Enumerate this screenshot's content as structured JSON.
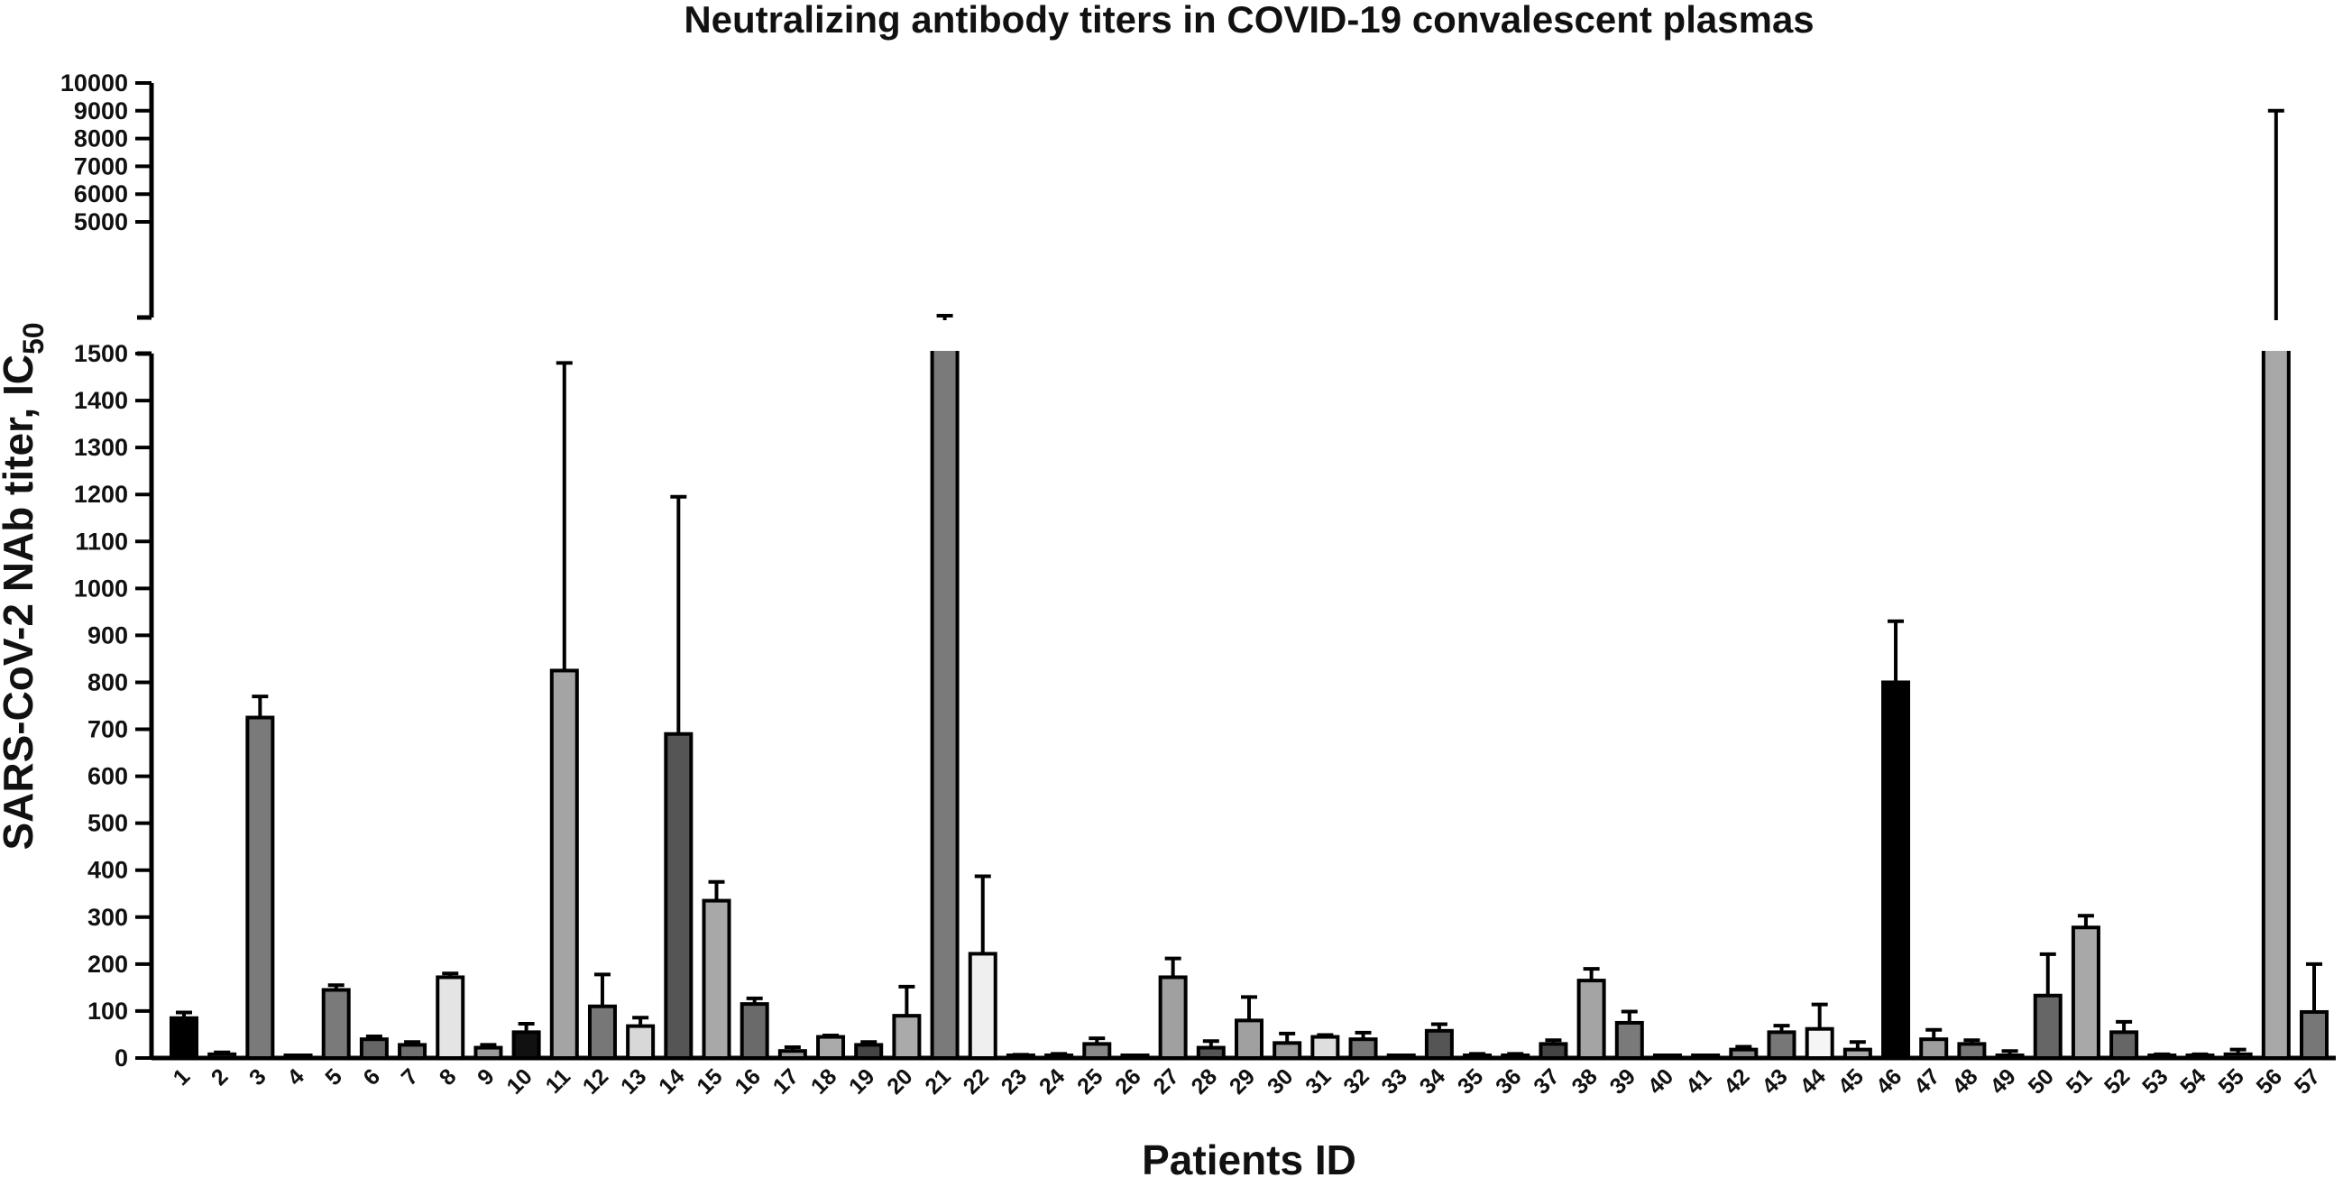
{
  "chart_data": {
    "type": "bar",
    "title": "Neutralizing antibody titers in COVID-19 convalescent plasmas",
    "xlabel": "Patients ID",
    "ylabel_main": "SARS-CoV-2 NAb titer, IC",
    "ylabel_sub": "50",
    "y_axis_break": true,
    "ylim_lower": [
      0,
      1500
    ],
    "ylim_upper": [
      5000,
      10000
    ],
    "yticks_lower": [
      "0",
      "100",
      "200",
      "300",
      "400",
      "500",
      "600",
      "700",
      "800",
      "900",
      "1000",
      "1100",
      "1200",
      "1300",
      "1400",
      "1500"
    ],
    "yticks_upper": [
      "5000",
      "6000",
      "7000",
      "8000",
      "9000",
      "10000"
    ],
    "categories": [
      "1",
      "2",
      "3",
      "4",
      "5",
      "6",
      "7",
      "8",
      "9",
      "10",
      "11",
      "12",
      "13",
      "14",
      "15",
      "16",
      "17",
      "18",
      "19",
      "20",
      "21",
      "22",
      "23",
      "24",
      "25",
      "26",
      "27",
      "28",
      "29",
      "30",
      "31",
      "32",
      "33",
      "34",
      "35",
      "36",
      "37",
      "38",
      "39",
      "40",
      "41",
      "42",
      "43",
      "44",
      "45",
      "46",
      "47",
      "48",
      "49",
      "50",
      "51",
      "52",
      "53",
      "54",
      "55",
      "56",
      "57"
    ],
    "values": [
      85,
      8,
      725,
      0,
      145,
      40,
      28,
      172,
      22,
      55,
      825,
      110,
      68,
      690,
      335,
      115,
      15,
      45,
      28,
      90,
      2600,
      222,
      5,
      5,
      30,
      0,
      172,
      22,
      80,
      32,
      45,
      40,
      0,
      58,
      3,
      5,
      30,
      165,
      75,
      0,
      0,
      18,
      55,
      62,
      18,
      800,
      40,
      30,
      5,
      133,
      278,
      55,
      5,
      3,
      8,
      2800,
      98
    ],
    "errors": [
      12,
      4,
      45,
      0,
      10,
      6,
      6,
      8,
      6,
      18,
      655,
      68,
      18,
      505,
      40,
      12,
      8,
      3,
      6,
      62,
      500,
      165,
      2,
      4,
      12,
      0,
      40,
      14,
      50,
      20,
      4,
      14,
      0,
      14,
      6,
      4,
      8,
      25,
      24,
      0,
      0,
      6,
      14,
      52,
      16,
      130,
      20,
      8,
      10,
      88,
      25,
      22,
      3,
      5,
      10,
      6200,
      102
    ],
    "bar_colors": [
      "#000000",
      "#777777",
      "#7a7a7a",
      "#888888",
      "#7a7a7a",
      "#666666",
      "#6e6e6e",
      "#e4e4e4",
      "#9a9a9a",
      "#111111",
      "#a4a4a4",
      "#777777",
      "#d8d8d8",
      "#555555",
      "#a8a8a8",
      "#6a6a6a",
      "#9a9a9a",
      "#aaaaaa",
      "#444444",
      "#aaaaaa",
      "#7a7a7a",
      "#efefef",
      "#888888",
      "#888888",
      "#888888",
      "#888888",
      "#a0a0a0",
      "#555555",
      "#a0a0a0",
      "#9c9c9c",
      "#dedede",
      "#777777",
      "#888888",
      "#555555",
      "#888888",
      "#888888",
      "#444444",
      "#a4a4a4",
      "#7a7a7a",
      "#888888",
      "#888888",
      "#888888",
      "#777777",
      "#f5f5f5",
      "#aaaaaa",
      "#000000",
      "#9e9e9e",
      "#777777",
      "#777777",
      "#666666",
      "#a8a8a8",
      "#666666",
      "#888888",
      "#888888",
      "#888888",
      "#a8a8a8",
      "#777777"
    ]
  }
}
